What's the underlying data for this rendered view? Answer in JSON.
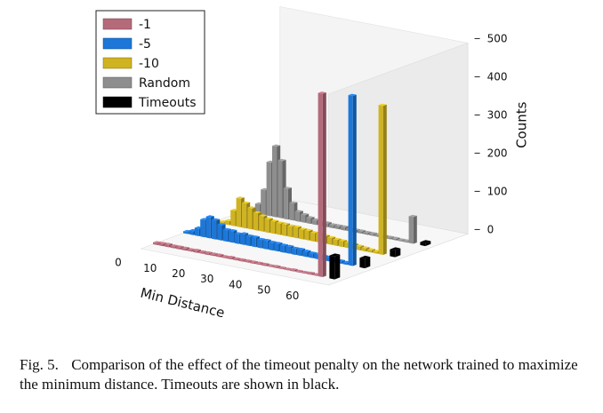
{
  "chart_data": {
    "type": "3d-bar",
    "x_axis": {
      "label": "Min Distance",
      "ticks": [
        "0",
        "10",
        "20",
        "30",
        "40",
        "50",
        "60"
      ],
      "range": [
        0,
        60
      ]
    },
    "z_axis": {
      "label": "Counts",
      "ticks": [
        "0",
        "100",
        "200",
        "300",
        "400",
        "500"
      ],
      "range": [
        0,
        500
      ]
    },
    "legend": [
      {
        "name": "-1",
        "color": "#b56a7a"
      },
      {
        "name": "-5",
        "color": "#1c77d9"
      },
      {
        "name": "-10",
        "color": "#cfb320"
      },
      {
        "name": "Random",
        "color": "#8e8e8e"
      },
      {
        "name": "Timeouts",
        "color": "#000000"
      }
    ],
    "series": [
      {
        "name": "-1",
        "x": [
          0,
          2,
          4,
          6,
          8,
          10,
          12,
          14,
          16,
          18,
          20,
          22,
          24,
          26,
          28,
          30,
          32,
          34,
          36,
          38,
          40,
          42,
          44,
          46,
          48,
          50,
          52,
          54,
          56,
          58
        ],
        "values": [
          5,
          6,
          6,
          5,
          5,
          5,
          4,
          5,
          4,
          4,
          4,
          4,
          3,
          4,
          3,
          3,
          3,
          3,
          3,
          3,
          2,
          3,
          2,
          2,
          3,
          2,
          2,
          3,
          2,
          480
        ]
      },
      {
        "name": "-5",
        "x": [
          0,
          2,
          4,
          6,
          8,
          10,
          12,
          14,
          16,
          18,
          20,
          22,
          24,
          26,
          28,
          30,
          32,
          34,
          36,
          38,
          40,
          42,
          44,
          46,
          48,
          50,
          52,
          54,
          56,
          58
        ],
        "values": [
          5,
          10,
          20,
          45,
          55,
          50,
          40,
          30,
          30,
          25,
          28,
          25,
          25,
          22,
          22,
          20,
          20,
          18,
          18,
          16,
          16,
          14,
          12,
          12,
          10,
          10,
          8,
          6,
          5,
          445
        ]
      },
      {
        "name": "-10",
        "x": [
          0,
          2,
          4,
          6,
          8,
          10,
          12,
          14,
          16,
          18,
          20,
          22,
          24,
          26,
          28,
          30,
          32,
          34,
          36,
          38,
          40,
          42,
          44,
          46,
          48,
          50,
          52,
          54,
          56,
          58
        ],
        "values": [
          2,
          4,
          10,
          40,
          75,
          65,
          55,
          45,
          40,
          35,
          32,
          30,
          30,
          28,
          28,
          25,
          25,
          22,
          22,
          20,
          18,
          16,
          15,
          14,
          12,
          10,
          8,
          6,
          5,
          390
        ]
      },
      {
        "name": "Random",
        "x": [
          0,
          2,
          4,
          6,
          8,
          10,
          12,
          14,
          16,
          18,
          20,
          22,
          24,
          26,
          28,
          30,
          32,
          34,
          36,
          38,
          40,
          42,
          44,
          46,
          48,
          50,
          52,
          54,
          56,
          58
        ],
        "values": [
          2,
          5,
          25,
          65,
          140,
          185,
          150,
          80,
          45,
          25,
          20,
          15,
          12,
          10,
          10,
          8,
          8,
          8,
          6,
          6,
          6,
          5,
          5,
          5,
          4,
          4,
          4,
          3,
          3,
          70
        ]
      },
      {
        "name": "Timeouts",
        "x": [
          62
        ],
        "values": [
          60
        ]
      }
    ],
    "timeouts": [
      {
        "series": "-1",
        "value": 60
      },
      {
        "series": "-5",
        "value": 25
      },
      {
        "series": "-10",
        "value": 18
      },
      {
        "series": "Random",
        "value": 8
      }
    ]
  },
  "caption": {
    "label": "Fig. 5.",
    "text": "Comparison of the effect of the timeout penalty on the network trained to maximize the minimum distance. Timeouts are shown in black."
  }
}
